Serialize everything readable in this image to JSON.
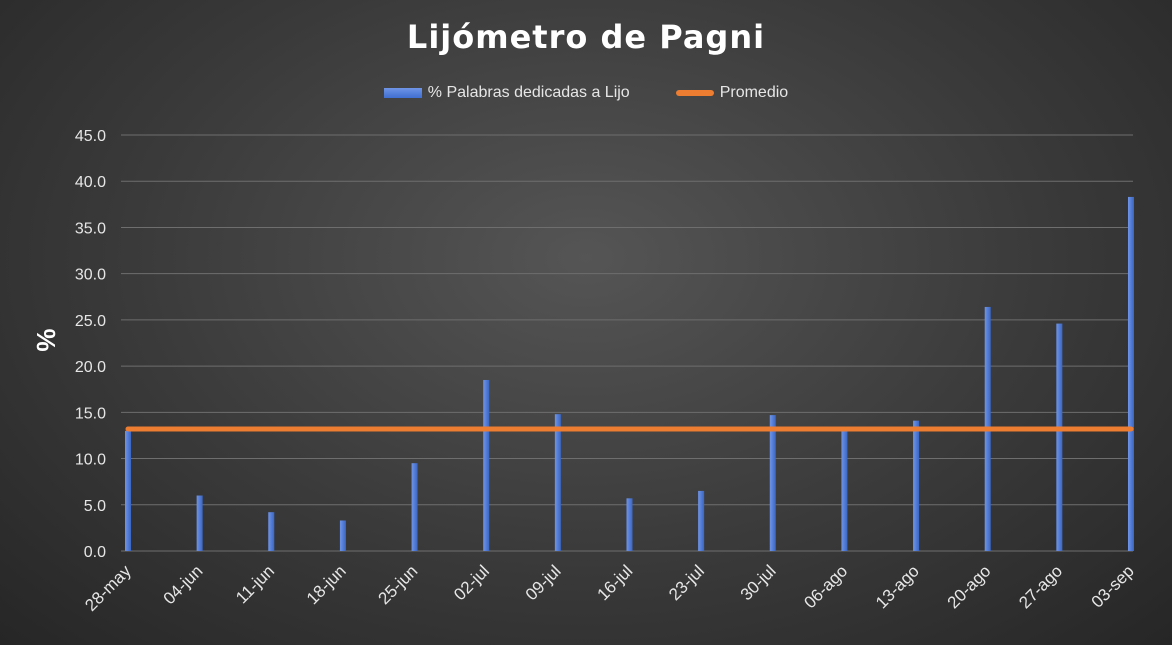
{
  "chart_data": {
    "type": "bar",
    "title": "Lijómetro de Pagni",
    "ylabel": "%",
    "xlabel": "",
    "ylim": [
      0,
      45
    ],
    "yticks": [
      "0.0",
      "5.0",
      "10.0",
      "15.0",
      "20.0",
      "25.0",
      "30.0",
      "35.0",
      "40.0",
      "45.0"
    ],
    "grid": true,
    "legend_position": "top-center",
    "categories": [
      "28-may",
      "04-jun",
      "11-jun",
      "18-jun",
      "25-jun",
      "02-jul",
      "09-jul",
      "16-jul",
      "23-jul",
      "30-jul",
      "06-ago",
      "13-ago",
      "20-ago",
      "27-ago",
      "03-sep"
    ],
    "series": [
      {
        "name": "% Palabras dedicadas a Lijo",
        "kind": "bar",
        "color": "#4472c4",
        "values": [
          13.0,
          6.0,
          4.2,
          3.3,
          9.5,
          18.5,
          14.8,
          5.7,
          6.5,
          14.7,
          13.0,
          14.1,
          26.4,
          24.6,
          38.3
        ]
      },
      {
        "name": "Promedio",
        "kind": "line",
        "color": "#ed7d31",
        "values": [
          13.2,
          13.2,
          13.2,
          13.2,
          13.2,
          13.2,
          13.2,
          13.2,
          13.2,
          13.2,
          13.2,
          13.2,
          13.2,
          13.2,
          13.2
        ]
      }
    ]
  }
}
